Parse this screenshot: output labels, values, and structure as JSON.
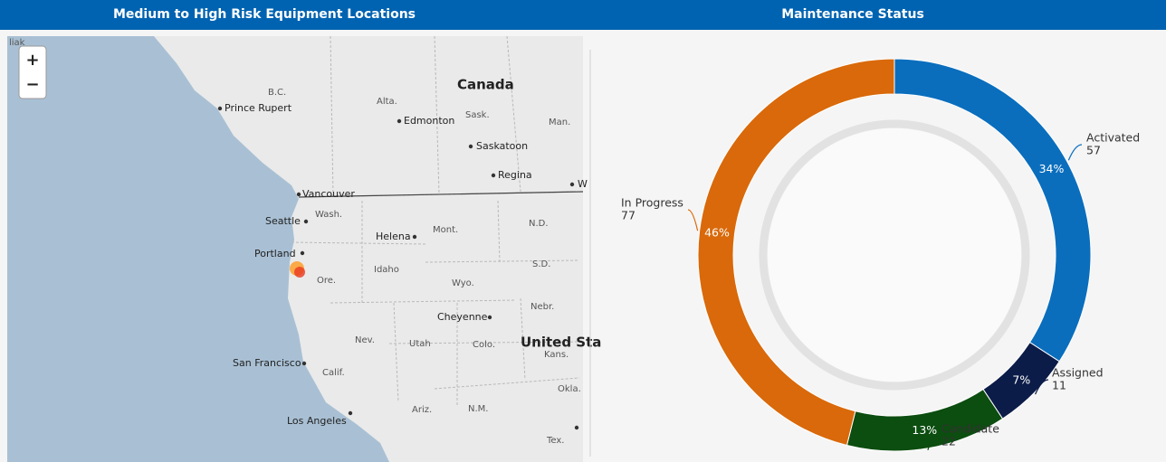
{
  "panels": [
    {
      "title": "Medium to High Risk Equipment Locations"
    },
    {
      "title": "Maintenance Status"
    }
  ],
  "map": {
    "zoom_in": "+",
    "zoom_out": "−",
    "labels": [
      "liak",
      "B.C.",
      "Prince Rupert",
      "Alta.",
      "Edmonton",
      "Canada",
      "Sask.",
      "Man.",
      "Saskatoon",
      "Regina",
      "W",
      "Vancouver",
      "Seattle",
      "Wash.",
      "Helena",
      "Mont.",
      "N.D.",
      "Portland",
      "Idaho",
      "S.D.",
      "Ore.",
      "Wyo.",
      "Cheyenne",
      "Nebr.",
      "Nev.",
      "Utah",
      "Colo.",
      "United Sta",
      "Kans.",
      "San Francisco",
      "Calif.",
      "Los Angeles",
      "Ariz.",
      "N.M.",
      "Okla.",
      "Tex."
    ]
  },
  "chart_data": {
    "type": "donut",
    "title": "Maintenance Status",
    "categories": [
      "Activated",
      "Assigned",
      "Candidate",
      "In Progress"
    ],
    "values": [
      57,
      11,
      22,
      77
    ],
    "percent_labels": [
      "34%",
      "7%",
      "13%",
      "46%"
    ],
    "colors": [
      "#0a6ebd",
      "#0c1c48",
      "#0c4d10",
      "#d9690a"
    ]
  }
}
